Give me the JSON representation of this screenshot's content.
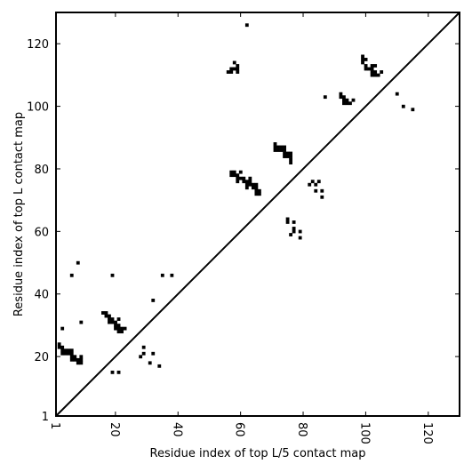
{
  "chart_data": {
    "type": "heatmap",
    "title": "",
    "xlabel": "Residue index of top L/5 contact map",
    "ylabel": "Residue index of top L contact map",
    "xlim": [
      1,
      130
    ],
    "ylim": [
      1,
      130
    ],
    "xticks": [
      1,
      20,
      40,
      60,
      80,
      100,
      120
    ],
    "yticks": [
      1,
      20,
      40,
      60,
      80,
      100,
      120
    ],
    "xtick_labels": [
      "1",
      "20",
      "40",
      "60",
      "80",
      "100",
      "120"
    ],
    "ytick_labels": [
      "1",
      "20",
      "40",
      "60",
      "80",
      "100",
      "120"
    ],
    "grid": false,
    "diagonal_line": true,
    "color": "#000000",
    "cells": [
      [
        2,
        24
      ],
      [
        2,
        23
      ],
      [
        3,
        23
      ],
      [
        3,
        22
      ],
      [
        3,
        21
      ],
      [
        4,
        22
      ],
      [
        4,
        21
      ],
      [
        5,
        22
      ],
      [
        5,
        21
      ],
      [
        6,
        22
      ],
      [
        6,
        21
      ],
      [
        6,
        20
      ],
      [
        6,
        19
      ],
      [
        7,
        20
      ],
      [
        7,
        19
      ],
      [
        8,
        19
      ],
      [
        8,
        18
      ],
      [
        9,
        20
      ],
      [
        9,
        19
      ],
      [
        9,
        18
      ],
      [
        3,
        29
      ],
      [
        6,
        46
      ],
      [
        8,
        50
      ],
      [
        9,
        31
      ],
      [
        16,
        34
      ],
      [
        17,
        34
      ],
      [
        17,
        33
      ],
      [
        18,
        33
      ],
      [
        18,
        32
      ],
      [
        18,
        31
      ],
      [
        19,
        32
      ],
      [
        19,
        31
      ],
      [
        20,
        31
      ],
      [
        20,
        30
      ],
      [
        20,
        29
      ],
      [
        21,
        32
      ],
      [
        21,
        30
      ],
      [
        21,
        29
      ],
      [
        21,
        28
      ],
      [
        22,
        29
      ],
      [
        22,
        28
      ],
      [
        23,
        29
      ],
      [
        19,
        46
      ],
      [
        19,
        15
      ],
      [
        21,
        15
      ],
      [
        28,
        20
      ],
      [
        29,
        23
      ],
      [
        29,
        21
      ],
      [
        31,
        18
      ],
      [
        32,
        21
      ],
      [
        32,
        38
      ],
      [
        34,
        17
      ],
      [
        35,
        46
      ],
      [
        38,
        46
      ],
      [
        56,
        111
      ],
      [
        57,
        112
      ],
      [
        57,
        111
      ],
      [
        58,
        114
      ],
      [
        58,
        112
      ],
      [
        59,
        113
      ],
      [
        59,
        112
      ],
      [
        59,
        111
      ],
      [
        62,
        126
      ],
      [
        57,
        79
      ],
      [
        57,
        78
      ],
      [
        58,
        79
      ],
      [
        58,
        78
      ],
      [
        59,
        78
      ],
      [
        59,
        77
      ],
      [
        59,
        76
      ],
      [
        60,
        79
      ],
      [
        60,
        77
      ],
      [
        61,
        77
      ],
      [
        61,
        76
      ],
      [
        62,
        76
      ],
      [
        62,
        75
      ],
      [
        62,
        74
      ],
      [
        63,
        77
      ],
      [
        63,
        76
      ],
      [
        63,
        75
      ],
      [
        64,
        75
      ],
      [
        64,
        74
      ],
      [
        65,
        75
      ],
      [
        65,
        74
      ],
      [
        65,
        73
      ],
      [
        65,
        72
      ],
      [
        66,
        73
      ],
      [
        66,
        72
      ],
      [
        71,
        88
      ],
      [
        71,
        87
      ],
      [
        71,
        86
      ],
      [
        72,
        87
      ],
      [
        72,
        86
      ],
      [
        73,
        87
      ],
      [
        73,
        86
      ],
      [
        74,
        87
      ],
      [
        74,
        86
      ],
      [
        74,
        85
      ],
      [
        74,
        84
      ],
      [
        75,
        85
      ],
      [
        75,
        84
      ],
      [
        76,
        85
      ],
      [
        76,
        84
      ],
      [
        76,
        83
      ],
      [
        76,
        82
      ],
      [
        75,
        64
      ],
      [
        75,
        63
      ],
      [
        76,
        59
      ],
      [
        77,
        63
      ],
      [
        77,
        61
      ],
      [
        77,
        60
      ],
      [
        79,
        60
      ],
      [
        79,
        58
      ],
      [
        82,
        75
      ],
      [
        83,
        76
      ],
      [
        84,
        75
      ],
      [
        84,
        73
      ],
      [
        85,
        76
      ],
      [
        86,
        73
      ],
      [
        86,
        71
      ],
      [
        87,
        103
      ],
      [
        92,
        104
      ],
      [
        92,
        103
      ],
      [
        93,
        103
      ],
      [
        93,
        102
      ],
      [
        93,
        101
      ],
      [
        94,
        102
      ],
      [
        94,
        101
      ],
      [
        95,
        101
      ],
      [
        96,
        102
      ],
      [
        99,
        116
      ],
      [
        99,
        115
      ],
      [
        99,
        114
      ],
      [
        100,
        115
      ],
      [
        100,
        113
      ],
      [
        100,
        112
      ],
      [
        101,
        112
      ],
      [
        102,
        113
      ],
      [
        102,
        112
      ],
      [
        102,
        111
      ],
      [
        102,
        110
      ],
      [
        103,
        113
      ],
      [
        103,
        111
      ],
      [
        103,
        110
      ],
      [
        104,
        110
      ],
      [
        105,
        111
      ],
      [
        110,
        104
      ],
      [
        112,
        100
      ],
      [
        115,
        99
      ]
    ]
  }
}
